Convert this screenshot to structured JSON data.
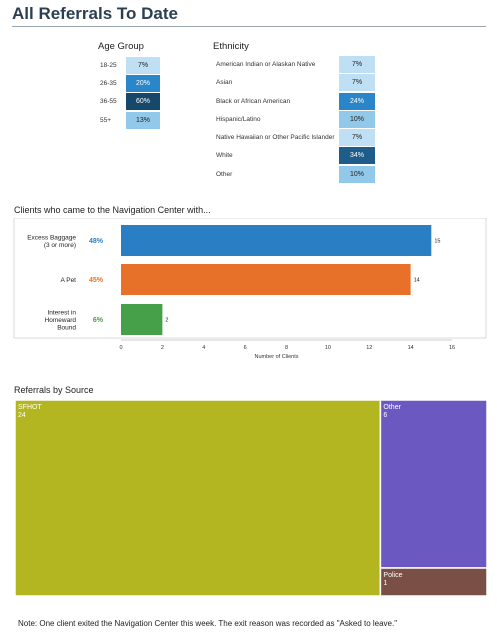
{
  "page": {
    "title": "All Referrals To Date"
  },
  "colors": {
    "light": "#a9d4ee",
    "mid": "#2a86c8",
    "dark": "#1b5782",
    "blue_bar": "#2a7fc4",
    "orange_bar": "#e8712a",
    "green_bar": "#46a049",
    "sfhot": "#b3b620",
    "other": "#6b58c0",
    "police": "#7a5046"
  },
  "age_table": {
    "header": "Age Group",
    "rows": [
      {
        "label": "18-25",
        "value": "7%",
        "pct": 7
      },
      {
        "label": "26-35",
        "value": "20%",
        "pct": 20
      },
      {
        "label": "36-55",
        "value": "60%",
        "pct": 60
      },
      {
        "label": "55+",
        "value": "13%",
        "pct": 13
      }
    ]
  },
  "ethnicity_table": {
    "header": "Ethnicity",
    "rows": [
      {
        "label": "American Indian or Alaskan Native",
        "value": "7%",
        "pct": 7
      },
      {
        "label": "Asian",
        "value": "7%",
        "pct": 7
      },
      {
        "label": "Black or African American",
        "value": "24%",
        "pct": 24
      },
      {
        "label": "Hispanic/Latino",
        "value": "10%",
        "pct": 10
      },
      {
        "label": "Native Hawaiian or Other Pacific Islander",
        "value": "7%",
        "pct": 7
      },
      {
        "label": "White",
        "value": "34%",
        "pct": 34
      },
      {
        "label": "Other",
        "value": "10%",
        "pct": 10
      }
    ]
  },
  "chart_data": [
    {
      "type": "bar",
      "orientation": "horizontal",
      "title": "Clients who came to the Navigation Center with...",
      "categories": [
        "Excess Baggage (3 or more)",
        "A Pet",
        "Interest in Homeward Bound"
      ],
      "category_lines": [
        [
          "Excess Baggage",
          "(3 or more)"
        ],
        [
          "A Pet"
        ],
        [
          "Interest in",
          "Homeward",
          "Bound"
        ]
      ],
      "values": [
        15,
        14,
        2
      ],
      "value_labels": [
        "15",
        "14",
        "2"
      ],
      "percent_labels": [
        "48%",
        "45%",
        "6%"
      ],
      "bar_colors": [
        "#2a7fc4",
        "#e8712a",
        "#46a049"
      ],
      "xlabel": "Number of Clients",
      "xlim": [
        0,
        16
      ],
      "xticks": [
        0,
        2,
        4,
        6,
        8,
        10,
        12,
        14,
        16
      ],
      "grid": false
    },
    {
      "type": "treemap",
      "title": "Referrals by Source",
      "items": [
        {
          "name": "SFHOT",
          "value": 24,
          "label": "24",
          "color": "#b3b620"
        },
        {
          "name": "Other",
          "value": 6,
          "label": "6",
          "color": "#6b58c0"
        },
        {
          "name": "Police",
          "value": 1,
          "label": "1",
          "color": "#7a5046"
        }
      ]
    }
  ],
  "footnote": "Note: One client exited the Navigation Center this week.  The exit reason was recorded as \"Asked to leave.\""
}
